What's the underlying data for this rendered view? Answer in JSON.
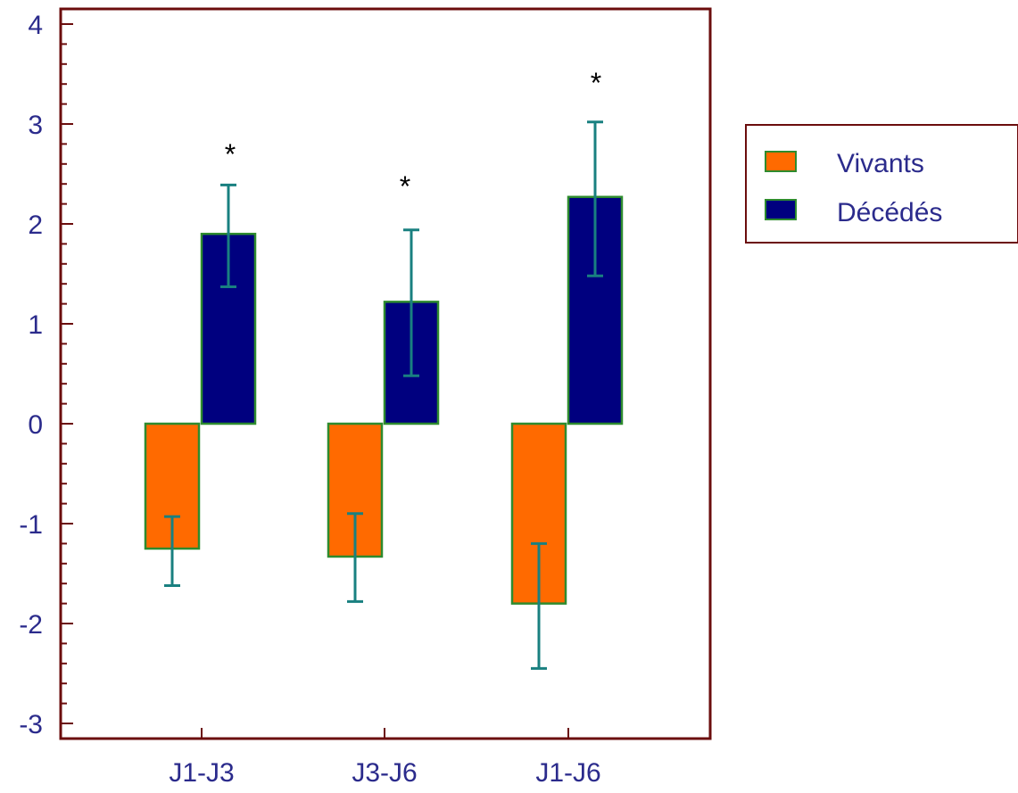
{
  "chart_data": {
    "type": "bar",
    "categories": [
      "J1-J3",
      "J3-J6",
      "J1-J6"
    ],
    "series": [
      {
        "name": "Vivants",
        "values": [
          -1.25,
          -1.33,
          -1.8
        ],
        "err_low": [
          -1.62,
          -1.78,
          -2.45
        ],
        "err_high": [
          -0.93,
          -0.9,
          -1.2
        ]
      },
      {
        "name": "Décédés",
        "values": [
          1.9,
          1.22,
          2.27
        ],
        "err_low": [
          1.37,
          0.48,
          1.48
        ],
        "err_high": [
          2.39,
          1.94,
          3.02
        ]
      }
    ],
    "annotations": [
      "*",
      "*",
      "*"
    ],
    "ylim": [
      -3.1,
      4.2
    ],
    "yticks": [
      "4",
      "3",
      "2",
      "1",
      "0",
      "-1",
      "-2",
      "-3"
    ],
    "legend_position": "right",
    "colors": {
      "frame": "#6b0d0d",
      "vivants_fill": "#ff6a00",
      "decedes_fill": "#00007f",
      "bar_edge": "#2e8b2e",
      "error_bar": "#198080",
      "text": "#2b2b8c"
    }
  }
}
